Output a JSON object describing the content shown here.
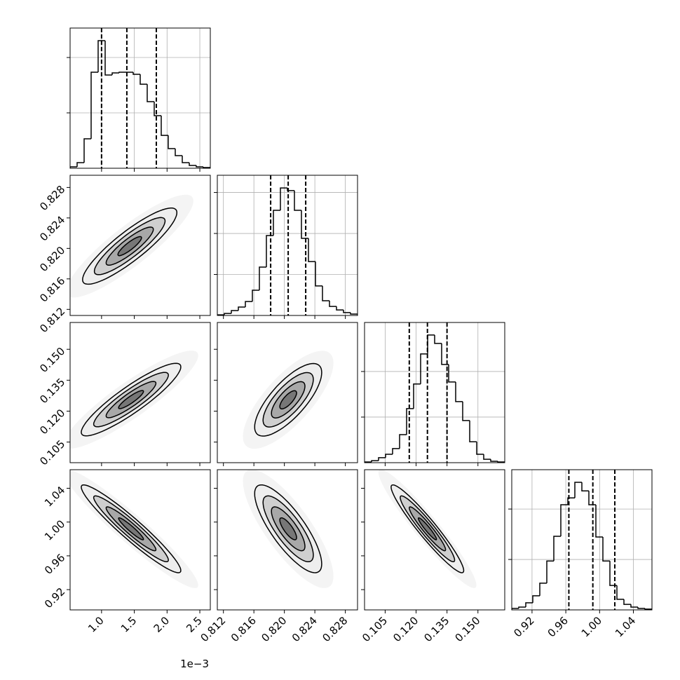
{
  "chart_data": {
    "type": "corner",
    "grid": true,
    "line_color": "#000000",
    "grid_color": "#b0b0b0",
    "offset_label": "1e−3",
    "params": [
      {
        "lim": [
          0.00052,
          0.00266
        ],
        "ticks": [
          {
            "value": 0.001,
            "label": "1.0"
          },
          {
            "value": 0.0015,
            "label": "1.5"
          },
          {
            "value": 0.002,
            "label": "2.0"
          },
          {
            "value": 0.0025,
            "label": "2.5"
          }
        ],
        "quantiles": [
          0.001,
          0.001386,
          0.001836
        ],
        "hist": {
          "bins": [
            0.00052,
            0.000627,
            0.000734,
            0.000841,
            0.000948,
            0.001055,
            0.001162,
            0.001269,
            0.001376,
            0.001483,
            0.00159,
            0.001697,
            0.001804,
            0.001911,
            0.002018,
            0.002125,
            0.002232,
            0.002339,
            0.002446,
            0.002553,
            0.00266
          ],
          "counts": [
            13,
            51,
            266,
            867,
            1152,
            842,
            861,
            867,
            867,
            848,
            759,
            601,
            475,
            297,
            177,
            114,
            51,
            25,
            13,
            6
          ],
          "ylim": [
            0,
            1266
          ],
          "yticks": [
            500,
            1000
          ]
        }
      },
      {
        "lim": [
          0.8112,
          0.8296
        ],
        "ticks": [
          0.812,
          0.816,
          {
            "value": 0.82,
            "label": "0.820"
          },
          0.824,
          0.828
        ],
        "quantiles": [
          0.8182,
          0.8205,
          0.8228
        ],
        "hist": {
          "bins": [
            0.8112,
            0.81212,
            0.81304,
            0.81396,
            0.81488,
            0.8158,
            0.81672,
            0.81764,
            0.81856,
            0.81948,
            0.8204,
            0.82132,
            0.82224,
            0.82316,
            0.82408,
            0.825,
            0.82592,
            0.82684,
            0.82776,
            0.82868,
            0.8296
          ],
          "counts": [
            3,
            10,
            24,
            41,
            68,
            123,
            236,
            390,
            513,
            622,
            609,
            513,
            376,
            263,
            144,
            72,
            44,
            27,
            14,
            7
          ],
          "ylim": [
            0,
            684
          ],
          "yticks": [
            200,
            400,
            600
          ]
        }
      },
      {
        "lim": [
          0.095,
          0.163
        ],
        "ticks": [
          0.105,
          {
            "value": 0.12,
            "label": "0.120"
          },
          0.135,
          {
            "value": 0.15,
            "label": "0.150"
          }
        ],
        "quantiles": [
          0.1167,
          0.1255,
          0.135
        ],
        "hist": {
          "bins": [
            0.095,
            0.0984,
            0.1018,
            0.1052,
            0.1086,
            0.112,
            0.1154,
            0.1188,
            0.1222,
            0.1256,
            0.129,
            0.1324,
            0.1358,
            0.1392,
            0.1426,
            0.146,
            0.1494,
            0.1528,
            0.1562,
            0.1596,
            0.163
          ],
          "counts": [
            3,
            9,
            22,
            37,
            62,
            123,
            237,
            345,
            477,
            560,
            523,
            431,
            354,
            268,
            185,
            92,
            37,
            15,
            6,
            3
          ],
          "ylim": [
            0,
            615
          ],
          "yticks": [
            200,
            400
          ]
        }
      },
      {
        "lim": [
          0.896,
          1.062
        ],
        "ticks": [
          0.92,
          0.96,
          {
            "value": 1.0,
            "label": "1.00"
          },
          1.04
        ],
        "quantiles": [
          0.9636,
          0.992,
          1.018
        ],
        "hist": {
          "bins": [
            0.896,
            0.9043,
            0.9126,
            0.9209,
            0.9292,
            0.9375,
            0.9458,
            0.9541,
            0.9624,
            0.9707,
            0.979,
            0.9873,
            0.9956,
            1.0039,
            1.0122,
            1.0205,
            1.0288,
            1.0371,
            1.0454,
            1.0537,
            1.062
          ],
          "counts": [
            6,
            11,
            28,
            56,
            106,
            194,
            292,
            417,
            444,
            506,
            472,
            417,
            289,
            194,
            97,
            42,
            22,
            11,
            6,
            3
          ],
          "ylim": [
            0,
            556
          ],
          "yticks": [
            200,
            400
          ]
        }
      }
    ],
    "contours": {
      "levels": [
        2,
        1.5,
        1,
        0.5
      ],
      "fills": [
        "#eeeeee",
        "#cfcfcf",
        "#a8a8a8",
        "#777777"
      ],
      "cloud_color": "#f4f4f4",
      "pairs": [
        {
          "x": 0,
          "y": 1,
          "center": [
            0.00143,
            0.8203
          ],
          "sigma": [
            0.00036,
            0.0025
          ],
          "rho": 0.88
        },
        {
          "x": 0,
          "y": 2,
          "center": [
            0.00145,
            0.1256
          ],
          "sigma": [
            0.00038,
            0.0088
          ],
          "rho": 0.9
        },
        {
          "x": 1,
          "y": 2,
          "center": [
            0.8205,
            0.1255
          ],
          "sigma": [
            0.0022,
            0.0088
          ],
          "rho": 0.75
        },
        {
          "x": 0,
          "y": 3,
          "center": [
            0.00145,
            0.992
          ],
          "sigma": [
            0.00038,
            0.026
          ],
          "rho": -0.95
        },
        {
          "x": 1,
          "y": 3,
          "center": [
            0.8205,
            0.992
          ],
          "sigma": [
            0.0022,
            0.026
          ],
          "rho": -0.8
        },
        {
          "x": 2,
          "y": 3,
          "center": [
            0.1255,
            0.992
          ],
          "sigma": [
            0.0088,
            0.026
          ],
          "rho": -0.95
        }
      ]
    }
  }
}
